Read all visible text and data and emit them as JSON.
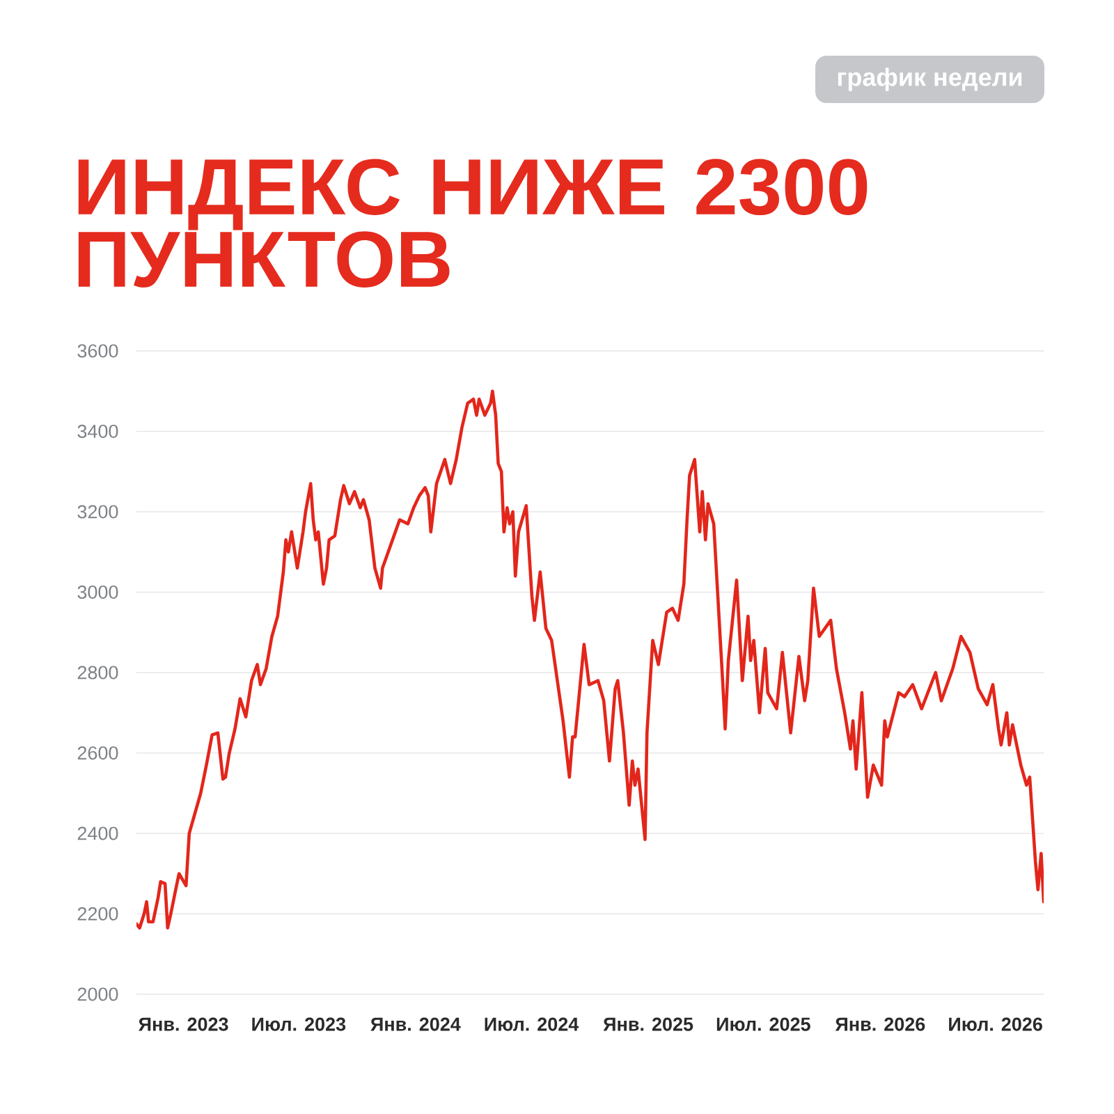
{
  "chart_data": {
    "type": "line",
    "title": "ИНДЕКС НИЖЕ 2300 ПУНКТОВ",
    "annotations": [
      "график недели"
    ],
    "x": [
      "2022-10-19",
      "2022-10-24",
      "2022-10-31",
      "2022-11-04",
      "2022-11-07",
      "2022-11-14",
      "2022-11-22",
      "2022-11-26",
      "2022-12-03",
      "2022-12-07",
      "2022-12-12",
      "2022-12-21",
      "2022-12-25",
      "2023-01-05",
      "2023-01-10",
      "2023-01-19",
      "2023-01-28",
      "2023-02-06",
      "2023-02-15",
      "2023-02-24",
      "2023-03-04",
      "2023-03-08",
      "2023-03-14",
      "2023-03-23",
      "2023-03-31",
      "2023-04-09",
      "2023-04-18",
      "2023-04-27",
      "2023-05-02",
      "2023-05-11",
      "2023-05-20",
      "2023-05-29",
      "2023-06-07",
      "2023-06-11",
      "2023-06-15",
      "2023-06-20",
      "2023-06-29",
      "2023-07-08",
      "2023-07-12",
      "2023-07-20",
      "2023-07-24",
      "2023-07-28",
      "2023-08-01",
      "2023-08-09",
      "2023-08-14",
      "2023-08-18",
      "2023-08-27",
      "2023-09-05",
      "2023-09-10",
      "2023-09-19",
      "2023-09-27",
      "2023-10-06",
      "2023-10-11",
      "2023-10-20",
      "2023-10-29",
      "2023-11-07",
      "2023-11-10",
      "2023-11-19",
      "2023-11-28",
      "2023-12-07",
      "2023-12-20",
      "2023-12-29",
      "2024-01-07",
      "2024-01-16",
      "2024-01-21",
      "2024-01-25",
      "2024-02-03",
      "2024-02-16",
      "2024-02-25",
      "2024-03-05",
      "2024-03-14",
      "2024-03-23",
      "2024-04-01",
      "2024-04-06",
      "2024-04-10",
      "2024-04-19",
      "2024-04-28",
      "2024-05-01",
      "2024-05-06",
      "2024-05-10",
      "2024-05-15",
      "2024-05-19",
      "2024-05-24",
      "2024-05-28",
      "2024-06-02",
      "2024-06-06",
      "2024-06-11",
      "2024-06-23",
      "2024-07-02",
      "2024-07-06",
      "2024-07-15",
      "2024-07-24",
      "2024-08-02",
      "2024-08-11",
      "2024-08-20",
      "2024-08-30",
      "2024-09-04",
      "2024-09-08",
      "2024-09-22",
      "2024-09-30",
      "2024-10-14",
      "2024-10-23",
      "2024-11-01",
      "2024-11-10",
      "2024-11-14",
      "2024-11-23",
      "2024-12-02",
      "2024-12-07",
      "2024-12-11",
      "2024-12-16",
      "2024-12-27",
      "2024-12-30",
      "2025-01-08",
      "2025-01-17",
      "2025-01-30",
      "2025-02-08",
      "2025-02-17",
      "2025-02-26",
      "2025-03-03",
      "2025-03-07",
      "2025-03-15",
      "2025-03-23",
      "2025-03-27",
      "2025-04-01",
      "2025-04-05",
      "2025-04-14",
      "2025-04-19",
      "2025-04-28",
      "2025-05-02",
      "2025-05-07",
      "2025-05-20",
      "2025-05-29",
      "2025-06-07",
      "2025-06-11",
      "2025-06-16",
      "2025-06-25",
      "2025-07-04",
      "2025-07-08",
      "2025-07-22",
      "2025-07-31",
      "2025-08-13",
      "2025-08-26",
      "2025-09-04",
      "2025-09-09",
      "2025-09-18",
      "2025-09-27",
      "2025-10-15",
      "2025-10-24",
      "2025-11-06",
      "2025-11-15",
      "2025-11-19",
      "2025-11-24",
      "2025-12-03",
      "2025-12-12",
      "2025-12-21",
      "2026-01-03",
      "2026-01-08",
      "2026-01-12",
      "2026-01-30",
      "2026-02-08",
      "2026-02-21",
      "2026-03-07",
      "2026-03-29",
      "2026-04-07",
      "2026-04-25",
      "2026-05-08",
      "2026-05-22",
      "2026-06-04",
      "2026-06-18",
      "2026-06-27",
      "2026-07-06",
      "2026-07-10",
      "2026-07-19",
      "2026-07-23",
      "2026-07-28",
      "2026-08-10",
      "2026-08-19",
      "2026-08-24",
      "2026-09-02",
      "2026-09-06",
      "2026-09-11",
      "2026-09-15"
    ],
    "series": [
      {
        "color": "#e3261b",
        "values": [
          2175,
          2165,
          2200,
          2230,
          2180,
          2180,
          2240,
          2280,
          2275,
          2165,
          2200,
          2270,
          2300,
          2270,
          2400,
          2450,
          2500,
          2570,
          2645,
          2650,
          2535,
          2540,
          2600,
          2660,
          2735,
          2690,
          2780,
          2820,
          2770,
          2810,
          2890,
          2940,
          3050,
          3130,
          3100,
          3150,
          3060,
          3150,
          3200,
          3270,
          3180,
          3130,
          3150,
          3020,
          3060,
          3130,
          3140,
          3230,
          3265,
          3220,
          3250,
          3210,
          3230,
          3180,
          3060,
          3010,
          3060,
          3100,
          3140,
          3180,
          3170,
          3210,
          3240,
          3260,
          3240,
          3150,
          3270,
          3330,
          3270,
          3330,
          3410,
          3470,
          3480,
          3440,
          3480,
          3440,
          3470,
          3500,
          3440,
          3320,
          3300,
          3150,
          3210,
          3170,
          3200,
          3040,
          3150,
          3215,
          2990,
          2930,
          3050,
          2910,
          2880,
          2780,
          2680,
          2540,
          2640,
          2640,
          2870,
          2770,
          2780,
          2730,
          2580,
          2760,
          2780,
          2650,
          2470,
          2580,
          2520,
          2560,
          2385,
          2650,
          2880,
          2820,
          2950,
          2960,
          2930,
          3020,
          3180,
          3290,
          3330,
          3150,
          3250,
          3130,
          3220,
          3170,
          3030,
          2780,
          2660,
          2830,
          3030,
          2780,
          2940,
          2830,
          2880,
          2700,
          2860,
          2750,
          2710,
          2850,
          2650,
          2840,
          2730,
          2780,
          3010,
          2890,
          2930,
          2810,
          2700,
          2610,
          2680,
          2560,
          2750,
          2490,
          2570,
          2520,
          2680,
          2640,
          2750,
          2740,
          2770,
          2710,
          2800,
          2730,
          2810,
          2890,
          2850,
          2760,
          2720,
          2770,
          2660,
          2620,
          2700,
          2620,
          2670,
          2570,
          2520,
          2540,
          2330,
          2260,
          2350,
          2230
        ]
      }
    ],
    "xlim": [
      "2022-10-19",
      "2026-09-15"
    ],
    "xticks": [
      {
        "value": "2023-01-01",
        "label": "Янв. 2023"
      },
      {
        "value": "2023-07-01",
        "label": "Июл. 2023"
      },
      {
        "value": "2024-01-01",
        "label": "Янв. 2024"
      },
      {
        "value": "2024-07-01",
        "label": "Июл. 2024"
      },
      {
        "value": "2025-01-01",
        "label": "Янв. 2025"
      },
      {
        "value": "2025-07-01",
        "label": "Июл. 2025"
      },
      {
        "value": "2026-01-01",
        "label": "Янв. 2026"
      },
      {
        "value": "2026-07-01",
        "label": "Июл. 2026"
      }
    ],
    "ylim": [
      2000,
      3600
    ],
    "yticks": [
      2000,
      2200,
      2400,
      2600,
      2800,
      3000,
      3200,
      3400,
      3600
    ],
    "grid": "y",
    "marker": "none",
    "line_style": "solid"
  }
}
